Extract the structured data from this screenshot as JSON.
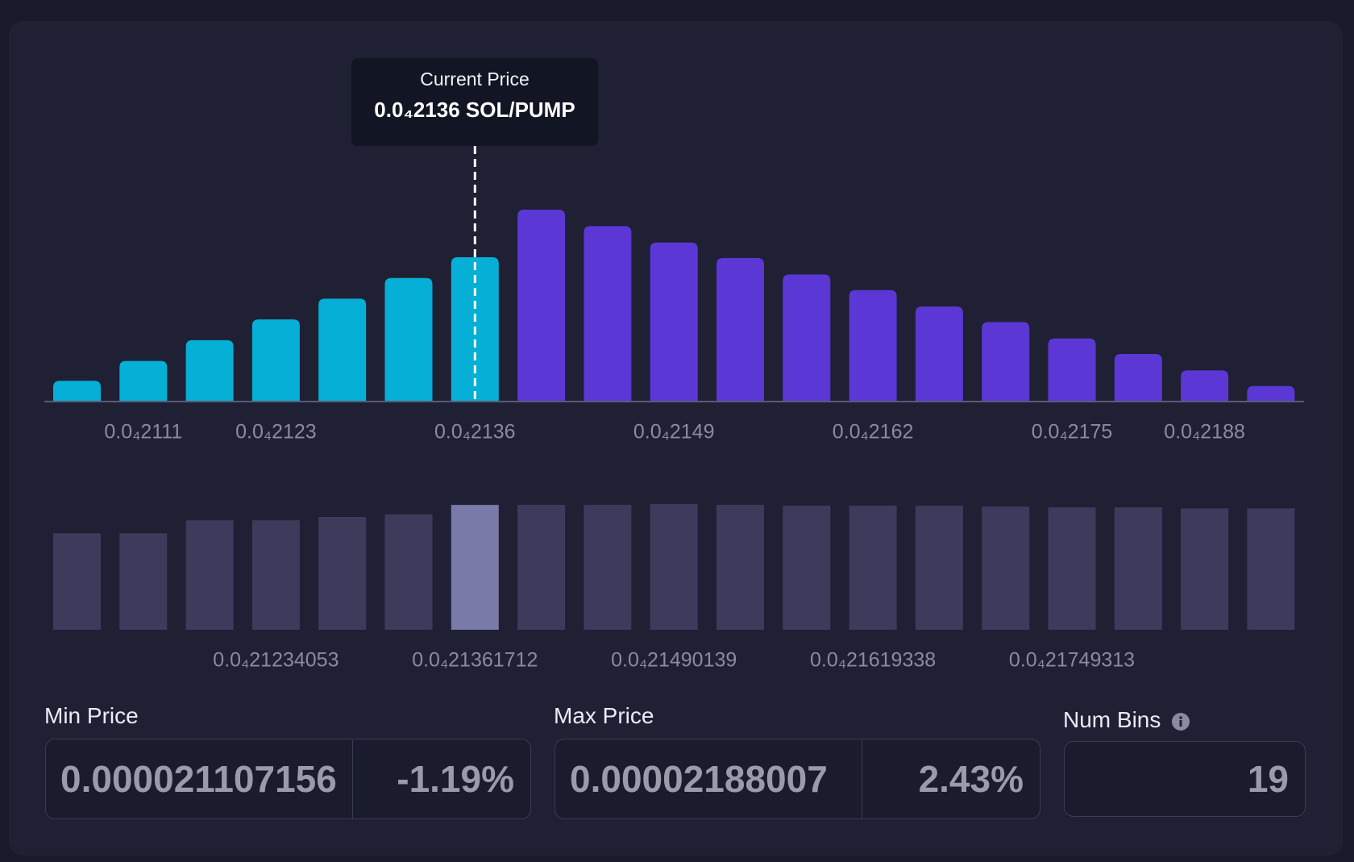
{
  "chart_data": [
    {
      "type": "bar",
      "categories": [
        null,
        "0.0₄2111",
        null,
        "0.0₄2123",
        null,
        null,
        "0.0₄2136",
        null,
        null,
        "0.0₄2149",
        null,
        null,
        "0.0₄2162",
        null,
        null,
        "0.0₄2175",
        null,
        "0.0₄2188",
        null
      ],
      "values": [
        24,
        47,
        71,
        95,
        119,
        143,
        167,
        222,
        203,
        184,
        166,
        147,
        129,
        110,
        92,
        73,
        55,
        36,
        18
      ],
      "colors": [
        "#06afd5",
        "#06afd5",
        "#06afd5",
        "#06afd5",
        "#06afd5",
        "#06afd5",
        "#06afd5",
        "#5b37d6",
        "#5b37d6",
        "#5b37d6",
        "#5b37d6",
        "#5b37d6",
        "#5b37d6",
        "#5b37d6",
        "#5b37d6",
        "#5b37d6",
        "#5b37d6",
        "#5b37d6",
        "#5b37d6"
      ],
      "annotation": {
        "title": "Current Price",
        "value": "0.0₄2136 SOL/PUMP"
      }
    },
    {
      "type": "bar",
      "categories": [
        null,
        null,
        null,
        "0.0₄21234053",
        null,
        null,
        "0.0₄21361712",
        null,
        null,
        "0.0₄21490139",
        null,
        null,
        "0.0₄21619338",
        null,
        null,
        "0.0₄21749313",
        null,
        null,
        null
      ],
      "values": [
        112,
        112,
        127,
        127,
        131,
        134,
        145,
        145,
        145,
        146,
        145,
        144,
        144,
        144,
        143,
        142,
        142,
        141,
        141
      ],
      "colors": [
        "#3d3b5c",
        "#3d3b5c",
        "#3d3b5c",
        "#3d3b5c",
        "#3d3b5c",
        "#3d3b5c",
        "#7a7aa8",
        "#3d3b5c",
        "#3d3b5c",
        "#3d3b5c",
        "#3d3b5c",
        "#3d3b5c",
        "#3d3b5c",
        "#3d3b5c",
        "#3d3b5c",
        "#3d3b5c",
        "#3d3b5c",
        "#3d3b5c",
        "#3d3b5c"
      ]
    }
  ],
  "inputs": {
    "min_price": {
      "label": "Min Price",
      "value": "0.000021107156",
      "percent": "-1.19%"
    },
    "max_price": {
      "label": "Max Price",
      "value": "0.00002188007",
      "percent": "2.43%"
    },
    "num_bins": {
      "label": "Num Bins",
      "value": "19"
    }
  }
}
